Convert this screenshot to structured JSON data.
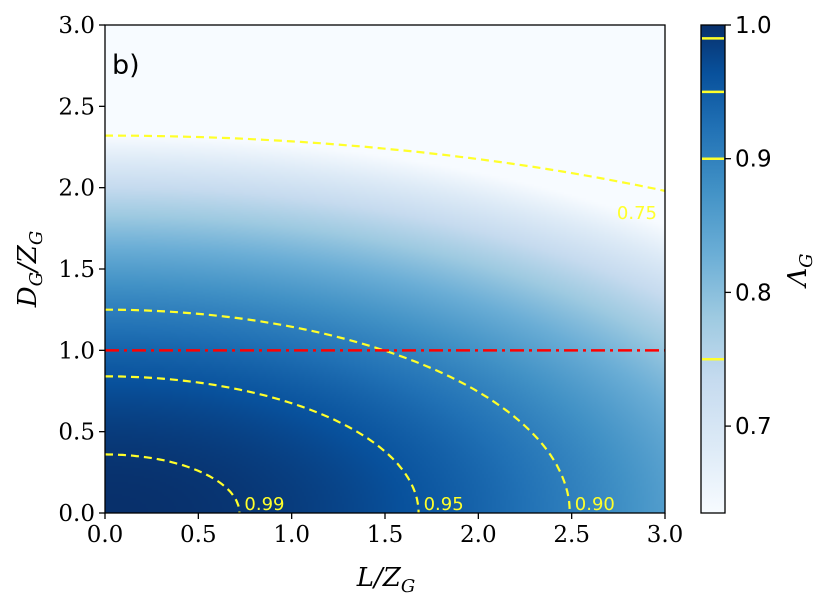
{
  "chart_data": {
    "type": "heatmap",
    "panel_label": "b)",
    "xlabel": "L/Z_G",
    "ylabel": "D_G/Z_G",
    "xlim": [
      0.0,
      3.0
    ],
    "ylim": [
      0.0,
      3.0
    ],
    "x_ticks": [
      "0.0",
      "0.5",
      "1.0",
      "1.5",
      "2.0",
      "2.5",
      "3.0"
    ],
    "y_ticks": [
      "0.0",
      "0.5",
      "1.0",
      "1.5",
      "2.0",
      "2.5",
      "3.0"
    ],
    "colormap": "Blues",
    "colorbar": {
      "label": "Λ_G",
      "range": [
        0.635,
        1.0
      ],
      "ticks": [
        "0.7",
        "0.8",
        "0.9",
        "1.0"
      ],
      "contour_marks": [
        0.75,
        0.9,
        0.95,
        0.99
      ]
    },
    "contours": [
      {
        "level": 0.99,
        "label": "0.99",
        "x_intercept": 0.72,
        "y_intercept": 0.36
      },
      {
        "level": 0.95,
        "label": "0.95",
        "x_intercept": 1.68,
        "y_intercept": 0.84
      },
      {
        "level": 0.9,
        "label": "0.90",
        "x_intercept": 2.49,
        "y_intercept": 1.25
      },
      {
        "level": 0.75,
        "label": "0.75",
        "y_intercept": 2.32,
        "y_at_x_max": 1.98
      }
    ],
    "reference_line": {
      "y": 1.0,
      "style": "dash-dot",
      "color": "#ff0000"
    },
    "colors": {
      "contour": "#ffff2a",
      "reference": "#ff0000"
    }
  }
}
